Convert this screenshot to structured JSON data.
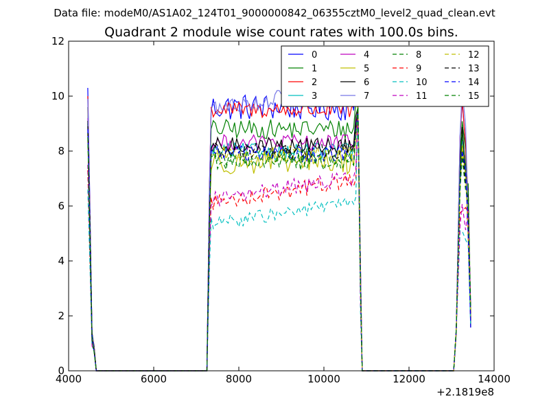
{
  "chart_data": {
    "type": "line",
    "suptitle": "Data file: modeM0/AS1A02_124T01_9000000842_06355cztM0_level2_quad_clean.evt",
    "title": "Quadrant 2 module wise count rates with 100.0s bins.",
    "xlabel": "",
    "ylabel": "",
    "x_offset_label": "+2.1819e8",
    "xlim": [
      4000,
      14000
    ],
    "ylim": [
      0,
      12
    ],
    "x_ticks": [
      4000,
      6000,
      8000,
      10000,
      12000,
      14000
    ],
    "x_tick_labels": [
      "4000",
      "6000",
      "8000",
      "10000",
      "12000",
      "14000"
    ],
    "y_ticks": [
      0,
      2,
      4,
      6,
      8,
      10,
      12
    ],
    "y_tick_labels": [
      "0",
      "2",
      "4",
      "6",
      "8",
      "10",
      "12"
    ],
    "grid": false,
    "legend_position": "top-right",
    "series": [
      {
        "name": "0",
        "color": "#0000ff",
        "dash": "solid",
        "level": 9.6,
        "amp": 0.5,
        "start": 10.3
      },
      {
        "name": "1",
        "color": "#008000",
        "dash": "solid",
        "level": 8.8,
        "amp": 0.35,
        "start": 9.6
      },
      {
        "name": "2",
        "color": "#ff0000",
        "dash": "solid",
        "level": 9.5,
        "amp": 0.3,
        "start": 10.0
      },
      {
        "name": "3",
        "color": "#00bfbf",
        "dash": "solid",
        "level": 8.0,
        "amp": 0.3,
        "start": 9.0
      },
      {
        "name": "4",
        "color": "#bf00bf",
        "dash": "solid",
        "level": 8.3,
        "amp": 0.3,
        "start": 9.2
      },
      {
        "name": "5",
        "color": "#bfbf00",
        "dash": "solid",
        "level": 7.6,
        "amp": 0.45,
        "start": 8.8
      },
      {
        "name": "6",
        "color": "#000000",
        "dash": "solid",
        "level": 8.2,
        "amp": 0.3,
        "start": 9.1
      },
      {
        "name": "7",
        "color": "#7878e6",
        "dash": "solid",
        "level": 9.5,
        "amp": 0.3,
        "start": 9.9
      },
      {
        "name": "8",
        "color": "#008000",
        "dash": "dashed",
        "level": 7.8,
        "amp": 0.3,
        "start": 8.7
      },
      {
        "name": "9",
        "color": "#ff0000",
        "dash": "dashed",
        "level": 6.1,
        "amp": 0.3,
        "start": 7.3
      },
      {
        "name": "10",
        "color": "#00bfbf",
        "dash": "dashed",
        "level": 5.3,
        "amp": 0.25,
        "start": 6.6
      },
      {
        "name": "11",
        "color": "#bf00bf",
        "dash": "dashed",
        "level": 6.2,
        "amp": 0.3,
        "start": 7.5
      },
      {
        "name": "12",
        "color": "#bfbf00",
        "dash": "dashed",
        "level": 7.9,
        "amp": 0.3,
        "start": 8.6
      },
      {
        "name": "13",
        "color": "#000000",
        "dash": "dashed",
        "level": 8.0,
        "amp": 0.3,
        "start": 8.9
      },
      {
        "name": "14",
        "color": "#0000ff",
        "dash": "dashed",
        "level": 7.9,
        "amp": 0.3,
        "start": 8.8
      },
      {
        "name": "15",
        "color": "#008000",
        "dash": "dashed",
        "level": 7.6,
        "amp": 0.3,
        "start": 8.5
      }
    ],
    "segments": [
      {
        "x_start": 4450,
        "x_end": 4650,
        "profile": "decay"
      },
      {
        "x_start": 4650,
        "x_end": 7250,
        "profile": "zero"
      },
      {
        "x_start": 7250,
        "x_end": 10900,
        "profile": "plateau"
      },
      {
        "x_start": 10900,
        "x_end": 13050,
        "profile": "zero"
      },
      {
        "x_start": 13050,
        "x_end": 13450,
        "profile": "rise"
      }
    ],
    "bin_size_s": 100
  }
}
